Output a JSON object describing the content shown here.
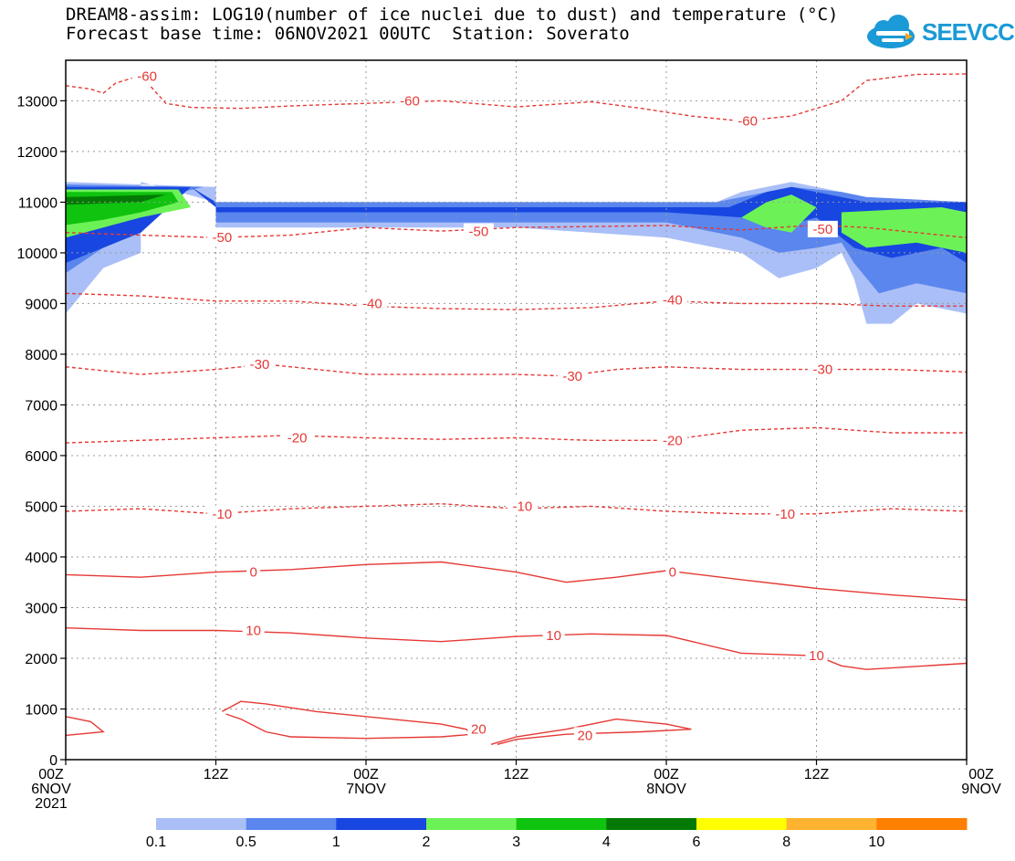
{
  "title_line1": "DREAM8-assim: LOG10(number of ice nuclei due to dust) and temperature (°C)",
  "title_line2": "Forecast base time: 06NOV2021 00UTC  Station: Soverato",
  "logo_text": "SEEVCCC",
  "colors": {
    "temperature": "#e53935",
    "fill_01": "#aabff7",
    "fill_05": "#5a86ee",
    "fill_1": "#1846e0",
    "fill_2": "#6cf256",
    "fill_3": "#0fc30f",
    "fill_4": "#047a04",
    "fill_6": "#ffff00",
    "fill_8": "#ffb330",
    "fill_10": "#ff7f00"
  },
  "chart_data": {
    "type": "contour",
    "xlabel": "",
    "ylabel": "",
    "ylim": [
      0,
      13800
    ],
    "xlim_hours": [
      0,
      72
    ],
    "yticks": [
      0,
      1000,
      2000,
      3000,
      4000,
      5000,
      6000,
      7000,
      8000,
      9000,
      10000,
      11000,
      12000,
      13000
    ],
    "xticks": [
      {
        "hour": 0,
        "lines": [
          "00Z",
          "6NOV",
          "2021"
        ]
      },
      {
        "hour": 12,
        "lines": [
          "12Z"
        ]
      },
      {
        "hour": 24,
        "lines": [
          "00Z",
          "7NOV"
        ]
      },
      {
        "hour": 36,
        "lines": [
          "12Z"
        ]
      },
      {
        "hour": 48,
        "lines": [
          "00Z",
          "8NOV"
        ]
      },
      {
        "hour": 60,
        "lines": [
          "12Z"
        ]
      },
      {
        "hour": 72,
        "lines": [
          "00Z",
          "9NOV"
        ]
      }
    ],
    "colorbar": {
      "levels": [
        "0.1",
        "0.5",
        "1",
        "2",
        "3",
        "4",
        "6",
        "8",
        "10"
      ],
      "colors": [
        "#aabff7",
        "#5a86ee",
        "#1846e0",
        "#6cf256",
        "#0fc30f",
        "#047a04",
        "#ffff00",
        "#ffb330",
        "#ff7f00"
      ]
    },
    "temperature_contours": [
      {
        "label": "-60",
        "dashed": true,
        "points": [
          [
            0,
            13300
          ],
          [
            2,
            13230
          ],
          [
            3,
            13150
          ],
          [
            4,
            13350
          ],
          [
            6,
            13500
          ],
          [
            8,
            12950
          ],
          [
            10,
            12870
          ],
          [
            14,
            12850
          ],
          [
            18,
            12900
          ],
          [
            24,
            12950
          ],
          [
            30,
            13000
          ],
          [
            36,
            12880
          ],
          [
            42,
            12980
          ],
          [
            46,
            12850
          ],
          [
            50,
            12700
          ],
          [
            54,
            12600
          ],
          [
            58,
            12700
          ],
          [
            62,
            13000
          ],
          [
            64,
            13400
          ],
          [
            68,
            13520
          ],
          [
            72,
            13530
          ]
        ],
        "labels": [
          [
            6.5,
            13480
          ],
          [
            27.5,
            13000
          ],
          [
            54.5,
            12600
          ]
        ]
      },
      {
        "label": "-50",
        "dashed": true,
        "points": [
          [
            0,
            10400
          ],
          [
            6,
            10350
          ],
          [
            12,
            10300
          ],
          [
            18,
            10350
          ],
          [
            24,
            10500
          ],
          [
            30,
            10430
          ],
          [
            36,
            10500
          ],
          [
            42,
            10520
          ],
          [
            48,
            10540
          ],
          [
            54,
            10450
          ],
          [
            60,
            10550
          ],
          [
            64,
            10500
          ],
          [
            72,
            10300
          ]
        ],
        "labels": [
          [
            12.5,
            10300
          ],
          [
            33,
            10420
          ],
          [
            60.5,
            10470
          ]
        ]
      },
      {
        "label": "-40",
        "dashed": true,
        "points": [
          [
            0,
            9200
          ],
          [
            6,
            9150
          ],
          [
            12,
            9050
          ],
          [
            18,
            9050
          ],
          [
            24,
            8950
          ],
          [
            30,
            8900
          ],
          [
            36,
            8880
          ],
          [
            42,
            8920
          ],
          [
            48,
            9050
          ],
          [
            54,
            9000
          ],
          [
            60,
            9000
          ],
          [
            66,
            8950
          ],
          [
            72,
            8950
          ]
        ],
        "labels": [
          [
            24.5,
            9000
          ],
          [
            48.5,
            9070
          ]
        ]
      },
      {
        "label": "-30",
        "dashed": true,
        "points": [
          [
            0,
            7750
          ],
          [
            6,
            7600
          ],
          [
            12,
            7700
          ],
          [
            16,
            7800
          ],
          [
            24,
            7600
          ],
          [
            30,
            7600
          ],
          [
            36,
            7600
          ],
          [
            40,
            7570
          ],
          [
            44,
            7700
          ],
          [
            48,
            7750
          ],
          [
            54,
            7700
          ],
          [
            60,
            7700
          ],
          [
            66,
            7700
          ],
          [
            72,
            7650
          ]
        ],
        "labels": [
          [
            15.5,
            7800
          ],
          [
            40.5,
            7570
          ],
          [
            60.5,
            7700
          ]
        ]
      },
      {
        "label": "-20",
        "dashed": true,
        "points": [
          [
            0,
            6250
          ],
          [
            6,
            6300
          ],
          [
            12,
            6350
          ],
          [
            18,
            6400
          ],
          [
            24,
            6350
          ],
          [
            30,
            6320
          ],
          [
            36,
            6350
          ],
          [
            42,
            6300
          ],
          [
            48,
            6300
          ],
          [
            54,
            6500
          ],
          [
            60,
            6550
          ],
          [
            66,
            6450
          ],
          [
            72,
            6450
          ]
        ],
        "labels": [
          [
            18.5,
            6350
          ],
          [
            48.5,
            6300
          ]
        ]
      },
      {
        "label": "-10",
        "dashed": true,
        "points": [
          [
            0,
            4900
          ],
          [
            6,
            4950
          ],
          [
            12,
            4850
          ],
          [
            18,
            4950
          ],
          [
            24,
            5000
          ],
          [
            30,
            5050
          ],
          [
            36,
            4950
          ],
          [
            42,
            5000
          ],
          [
            48,
            4900
          ],
          [
            54,
            4850
          ],
          [
            60,
            4850
          ],
          [
            66,
            4950
          ],
          [
            72,
            4900
          ]
        ],
        "labels": [
          [
            12.5,
            4850
          ],
          [
            36.5,
            5000
          ],
          [
            57.5,
            4850
          ]
        ]
      },
      {
        "label": "0",
        "dashed": false,
        "points": [
          [
            0,
            3650
          ],
          [
            6,
            3600
          ],
          [
            12,
            3700
          ],
          [
            18,
            3750
          ],
          [
            24,
            3850
          ],
          [
            30,
            3900
          ],
          [
            36,
            3700
          ],
          [
            40,
            3500
          ],
          [
            44,
            3600
          ],
          [
            48,
            3730
          ],
          [
            54,
            3550
          ],
          [
            60,
            3380
          ],
          [
            66,
            3250
          ],
          [
            72,
            3150
          ]
        ],
        "labels": [
          [
            15,
            3700
          ],
          [
            48.5,
            3700
          ]
        ]
      },
      {
        "label": "10",
        "dashed": false,
        "points": [
          [
            0,
            2600
          ],
          [
            6,
            2550
          ],
          [
            12,
            2550
          ],
          [
            18,
            2500
          ],
          [
            24,
            2400
          ],
          [
            30,
            2330
          ],
          [
            36,
            2430
          ],
          [
            42,
            2480
          ],
          [
            48,
            2450
          ],
          [
            54,
            2100
          ],
          [
            60,
            2050
          ],
          [
            62,
            1850
          ],
          [
            64,
            1780
          ],
          [
            72,
            1900
          ]
        ],
        "labels": [
          [
            15,
            2550
          ],
          [
            39,
            2450
          ],
          [
            60,
            2050
          ]
        ]
      },
      {
        "label": "20",
        "dashed": false,
        "points": [
          [
            0,
            850
          ],
          [
            2,
            750
          ],
          [
            3,
            550
          ],
          [
            0,
            480
          ]
        ],
        "labels": []
      },
      {
        "label": "20",
        "dashed": false,
        "points": [
          [
            12.5,
            950
          ],
          [
            14,
            1150
          ],
          [
            16,
            1100
          ],
          [
            20,
            950
          ],
          [
            26,
            800
          ],
          [
            30,
            700
          ],
          [
            32,
            600
          ],
          [
            32.5,
            500
          ],
          [
            30,
            450
          ],
          [
            24,
            420
          ],
          [
            18,
            450
          ],
          [
            16,
            550
          ],
          [
            14,
            800
          ],
          [
            12.8,
            900
          ]
        ],
        "labels": [
          [
            33,
            600
          ]
        ]
      },
      {
        "label": "20",
        "dashed": false,
        "points": [
          [
            34,
            300
          ],
          [
            36,
            450
          ],
          [
            40,
            600
          ],
          [
            44,
            800
          ],
          [
            48,
            700
          ],
          [
            50,
            600
          ],
          [
            46,
            550
          ],
          [
            40,
            500
          ],
          [
            36,
            400
          ],
          [
            34.5,
            300
          ]
        ],
        "labels": [
          [
            41.5,
            480
          ]
        ]
      }
    ],
    "dust_regions": [
      {
        "level": "0.1",
        "points": [
          [
            0,
            11400
          ],
          [
            12,
            11300
          ],
          [
            12,
            10500
          ],
          [
            36,
            10500
          ],
          [
            48,
            10300
          ],
          [
            54,
            10000
          ],
          [
            57,
            9500
          ],
          [
            60,
            9700
          ],
          [
            62,
            10000
          ],
          [
            63,
            9500
          ],
          [
            64,
            8600
          ],
          [
            66,
            8600
          ],
          [
            68,
            9000
          ],
          [
            72,
            8800
          ],
          [
            72,
            11000
          ],
          [
            64,
            11100
          ],
          [
            62,
            11200
          ],
          [
            58,
            11400
          ],
          [
            54,
            11200
          ],
          [
            52,
            11000
          ],
          [
            12,
            11000
          ],
          [
            12,
            11000
          ],
          [
            6,
            11400
          ],
          [
            6,
            10000
          ],
          [
            3,
            9700
          ],
          [
            0,
            8800
          ]
        ]
      },
      {
        "level": "0.5",
        "points": [
          [
            0,
            11350
          ],
          [
            11,
            11300
          ],
          [
            12,
            11000
          ],
          [
            12,
            10600
          ],
          [
            36,
            10600
          ],
          [
            48,
            10600
          ],
          [
            54,
            10300
          ],
          [
            57,
            10000
          ],
          [
            60,
            10100
          ],
          [
            62,
            10200
          ],
          [
            63,
            9800
          ],
          [
            65,
            9200
          ],
          [
            68,
            9400
          ],
          [
            72,
            9200
          ],
          [
            72,
            11000
          ],
          [
            64,
            11100
          ],
          [
            62,
            11200
          ],
          [
            58,
            11300
          ],
          [
            54,
            11100
          ],
          [
            52,
            11000
          ],
          [
            12,
            11000
          ],
          [
            11,
            11300
          ],
          [
            6,
            11000
          ],
          [
            3,
            10100
          ],
          [
            0,
            9600
          ]
        ]
      },
      {
        "level": "1",
        "points": [
          [
            0,
            11300
          ],
          [
            10,
            11300
          ],
          [
            12,
            11000
          ],
          [
            12,
            10800
          ],
          [
            36,
            10800
          ],
          [
            48,
            10800
          ],
          [
            54,
            10700
          ],
          [
            57,
            10500
          ],
          [
            60,
            10700
          ],
          [
            61,
            10500
          ],
          [
            63,
            10100
          ],
          [
            66,
            9900
          ],
          [
            70,
            10100
          ],
          [
            72,
            9800
          ],
          [
            72,
            11000
          ],
          [
            64,
            11000
          ],
          [
            62,
            11100
          ],
          [
            58,
            11300
          ],
          [
            56,
            11200
          ],
          [
            53,
            10900
          ],
          [
            12,
            10900
          ],
          [
            10,
            11300
          ],
          [
            6,
            10400
          ],
          [
            0,
            9800
          ]
        ]
      },
      {
        "level": "2",
        "points": [
          [
            0,
            11250
          ],
          [
            9,
            11250
          ],
          [
            10,
            10900
          ],
          [
            6,
            10700
          ],
          [
            3,
            10500
          ],
          [
            0,
            10300
          ]
        ]
      },
      {
        "level": "2b",
        "points": [
          [
            54,
            10700
          ],
          [
            56,
            11000
          ],
          [
            58,
            11150
          ],
          [
            60,
            10900
          ],
          [
            58,
            10400
          ],
          [
            56,
            10500
          ]
        ]
      },
      {
        "level": "2c",
        "points": [
          [
            62,
            10800
          ],
          [
            66,
            10850
          ],
          [
            70,
            10900
          ],
          [
            72,
            10800
          ],
          [
            72,
            10000
          ],
          [
            68,
            10200
          ],
          [
            64,
            10100
          ],
          [
            62,
            10400
          ]
        ]
      },
      {
        "level": "3",
        "points": [
          [
            0,
            11200
          ],
          [
            8.5,
            11200
          ],
          [
            9,
            11000
          ],
          [
            6,
            10800
          ],
          [
            3,
            10650
          ],
          [
            0,
            10550
          ]
        ]
      },
      {
        "level": "4",
        "points": [
          [
            0,
            11100
          ],
          [
            8,
            11150
          ],
          [
            6,
            11000
          ],
          [
            0,
            10950
          ]
        ]
      }
    ]
  }
}
